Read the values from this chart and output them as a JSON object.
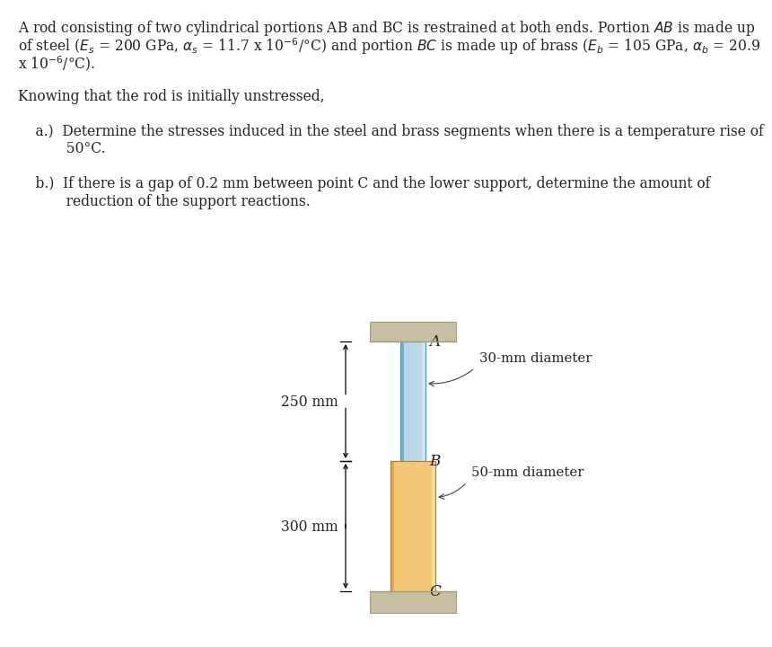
{
  "bg_color": "#ffffff",
  "fig_width": 8.19,
  "fig_height": 7.01,
  "steel_color_main": "#b8d8ea",
  "steel_color_left": "#6aaac8",
  "steel_color_right": "#daeef8",
  "brass_color_main": "#f5c878",
  "brass_color_left": "#c89020",
  "brass_color_right": "#fde8a8",
  "support_color": "#c8bfa0",
  "support_edge": "#a0967a",
  "dim_color": "#000000",
  "text_color": "#222222",
  "label_A": "A",
  "label_B": "B",
  "label_C": "C",
  "label_250mm": "250 mm",
  "label_300mm": "300 mm",
  "label_30mm": "30-mm diameter",
  "label_50mm": "50-mm diameter",
  "line1": "A rod consisting of two cylindrical portions AB and BC is restrained at both ends. Portion $\\mathit{AB}$ is made up",
  "line2": "of steel ($E_s$ = 200 GPa, $\\alpha_s$ = 11.7 x 10$^{-6}$/°C) and portion $\\mathit{BC}$ is made up of brass ($E_b$ = 105 GPa, $\\alpha_b$ = 20.9",
  "line3": "x 10$^{-6}$/°C).",
  "line4": "",
  "line5": "Knowing that the rod is initially unstressed,",
  "line6": "",
  "line7": "    a.)  Determine the stresses induced in the steel and brass segments when there is a temperature rise of",
  "line8": "           50°C.",
  "line9": "",
  "line10": "    b.)  If there is a gap of 0.2 mm between point C and the lower support, determine the amount of",
  "line11": "           reduction of the support reactions."
}
